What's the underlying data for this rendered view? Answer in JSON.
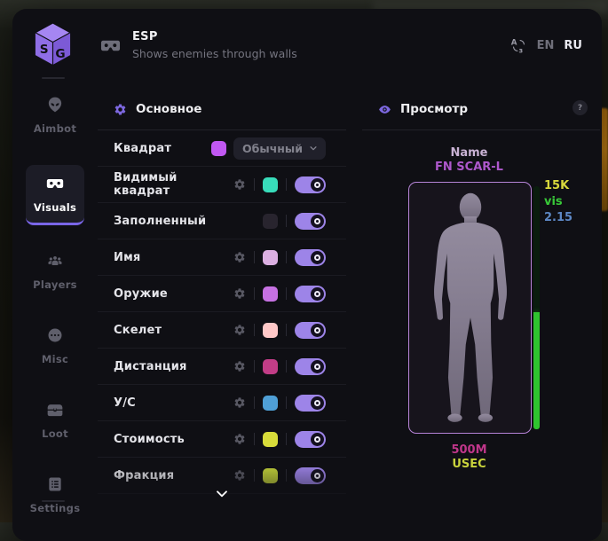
{
  "app": {
    "logo": "SG",
    "title": "ESP",
    "subtitle": "Shows enemies through walls",
    "languages": [
      {
        "label": "EN",
        "active": false
      },
      {
        "label": "RU",
        "active": true
      }
    ]
  },
  "sidebar": {
    "items": [
      {
        "label": "Aimbot",
        "icon": "alien-icon",
        "active": false
      },
      {
        "label": "Visuals",
        "icon": "goggles-icon",
        "active": true
      },
      {
        "label": "Players",
        "icon": "players-icon",
        "active": false
      },
      {
        "label": "Misc",
        "icon": "chat-icon",
        "active": false
      },
      {
        "label": "Loot",
        "icon": "chest-icon",
        "active": false
      },
      {
        "label": "Settings",
        "icon": "list-icon",
        "active": false
      }
    ]
  },
  "settings_panel": {
    "title": "Основное",
    "rows": [
      {
        "label": "Квадрат",
        "type": "dropdown",
        "gear": false,
        "swatch": "#c158f2",
        "dropdown_value": "Обычный"
      },
      {
        "label": "Видимый квадрат",
        "type": "toggle",
        "gear": true,
        "swatch": "#38dcba",
        "on": true
      },
      {
        "label": "Заполненный",
        "type": "toggle",
        "gear": false,
        "swatch": "#28242e",
        "on": true
      },
      {
        "label": "Имя",
        "type": "toggle",
        "gear": true,
        "swatch": "#dcb0e2",
        "on": true
      },
      {
        "label": "Оружие",
        "type": "toggle",
        "gear": true,
        "swatch": "#c671e2",
        "on": true
      },
      {
        "label": "Скелет",
        "type": "toggle",
        "gear": true,
        "swatch": "#ffc8c8",
        "on": true
      },
      {
        "label": "Дистанция",
        "type": "toggle",
        "gear": true,
        "swatch": "#c23d87",
        "on": true
      },
      {
        "label": "У/С",
        "type": "toggle",
        "gear": true,
        "swatch": "#4f9fd6",
        "on": true
      },
      {
        "label": "Стоимость",
        "type": "toggle",
        "gear": true,
        "swatch": "#d8dc3a",
        "on": true
      },
      {
        "label": "Фракция",
        "type": "toggle",
        "gear": true,
        "swatch": "#c2d13a",
        "on": true
      }
    ]
  },
  "preview_panel": {
    "title": "Просмотр",
    "help": "?",
    "name_label": "Name",
    "weapon_name": "FN SCAR-L",
    "price": "15K",
    "visibility": "vis",
    "distance_small": "2.15",
    "distance": "500M",
    "faction": "USEC",
    "health_percent": 48,
    "colors": {
      "name": "#c9b2d4",
      "weapon": "#ae58cc",
      "price": "#d8d83c",
      "visibility": "#38c838",
      "distance_small": "#5d87c4",
      "distance": "#c0368a",
      "faction": "#c8d23c",
      "health": "#2fc42f"
    }
  }
}
